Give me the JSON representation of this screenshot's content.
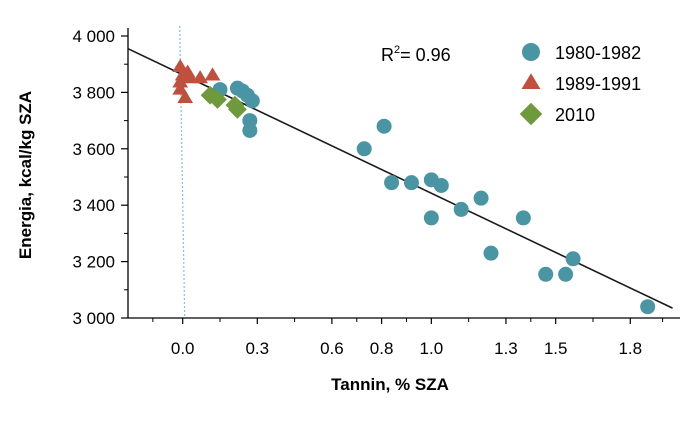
{
  "chart_data": {
    "type": "scatter",
    "title": "",
    "xlabel": "Tannin, % SZA",
    "ylabel": "Energia, kcal/kg SZA",
    "xlim": [
      -0.22,
      2.0
    ],
    "ylim": [
      3000,
      4000
    ],
    "x_ticks": [
      {
        "value": 0.0,
        "label": "0.0"
      },
      {
        "value": 0.3,
        "label": "0.3"
      },
      {
        "value": 0.6,
        "label": "0.6"
      },
      {
        "value": 0.8,
        "label": "0.8"
      },
      {
        "value": 1.0,
        "label": "1.0"
      },
      {
        "value": 1.3,
        "label": "1.3"
      },
      {
        "value": 1.5,
        "label": "1.5"
      },
      {
        "value": 1.8,
        "label": "1.8"
      }
    ],
    "y_ticks": [
      {
        "value": 3000,
        "label": "3 000"
      },
      {
        "value": 3200,
        "label": "3 200"
      },
      {
        "value": 3400,
        "label": "3 400"
      },
      {
        "value": 3600,
        "label": "3 600"
      },
      {
        "value": 3800,
        "label": "3 800"
      },
      {
        "value": 4000,
        "label": "4 000"
      }
    ],
    "annotation": {
      "r2_prefix": "R",
      "r2_sup": "2",
      "r2_value": "= 0.96"
    },
    "reference_line_x": 0.0,
    "regression": {
      "x": [
        -0.22,
        1.97
      ],
      "y": [
        3955,
        3035
      ]
    },
    "legend_position": "top-right",
    "series": [
      {
        "name": "1980-1982",
        "marker": "circle",
        "color": "#4a95a3",
        "points": [
          [
            0.15,
            3810
          ],
          [
            0.22,
            3815
          ],
          [
            0.24,
            3805
          ],
          [
            0.26,
            3790
          ],
          [
            0.28,
            3770
          ],
          [
            0.27,
            3700
          ],
          [
            0.27,
            3665
          ],
          [
            0.73,
            3600
          ],
          [
            0.81,
            3680
          ],
          [
            0.84,
            3480
          ],
          [
            0.92,
            3480
          ],
          [
            1.0,
            3490
          ],
          [
            1.04,
            3470
          ],
          [
            1.0,
            3355
          ],
          [
            1.12,
            3385
          ],
          [
            1.2,
            3425
          ],
          [
            1.24,
            3230
          ],
          [
            1.37,
            3355
          ],
          [
            1.46,
            3155
          ],
          [
            1.54,
            3155
          ],
          [
            1.57,
            3210
          ],
          [
            1.87,
            3040
          ]
        ]
      },
      {
        "name": "1989-1991",
        "marker": "triangle",
        "color": "#c0503d",
        "points": [
          [
            -0.01,
            3890
          ],
          [
            0.0,
            3860
          ],
          [
            -0.01,
            3835
          ],
          [
            0.02,
            3870
          ],
          [
            0.03,
            3850
          ],
          [
            -0.01,
            3810
          ],
          [
            0.01,
            3780
          ],
          [
            0.07,
            3850
          ],
          [
            0.12,
            3860
          ]
        ]
      },
      {
        "name": "2010",
        "marker": "diamond",
        "color": "#6e9a3c",
        "points": [
          [
            0.11,
            3790
          ],
          [
            0.14,
            3775
          ],
          [
            0.21,
            3755
          ],
          [
            0.22,
            3740
          ]
        ]
      }
    ]
  }
}
